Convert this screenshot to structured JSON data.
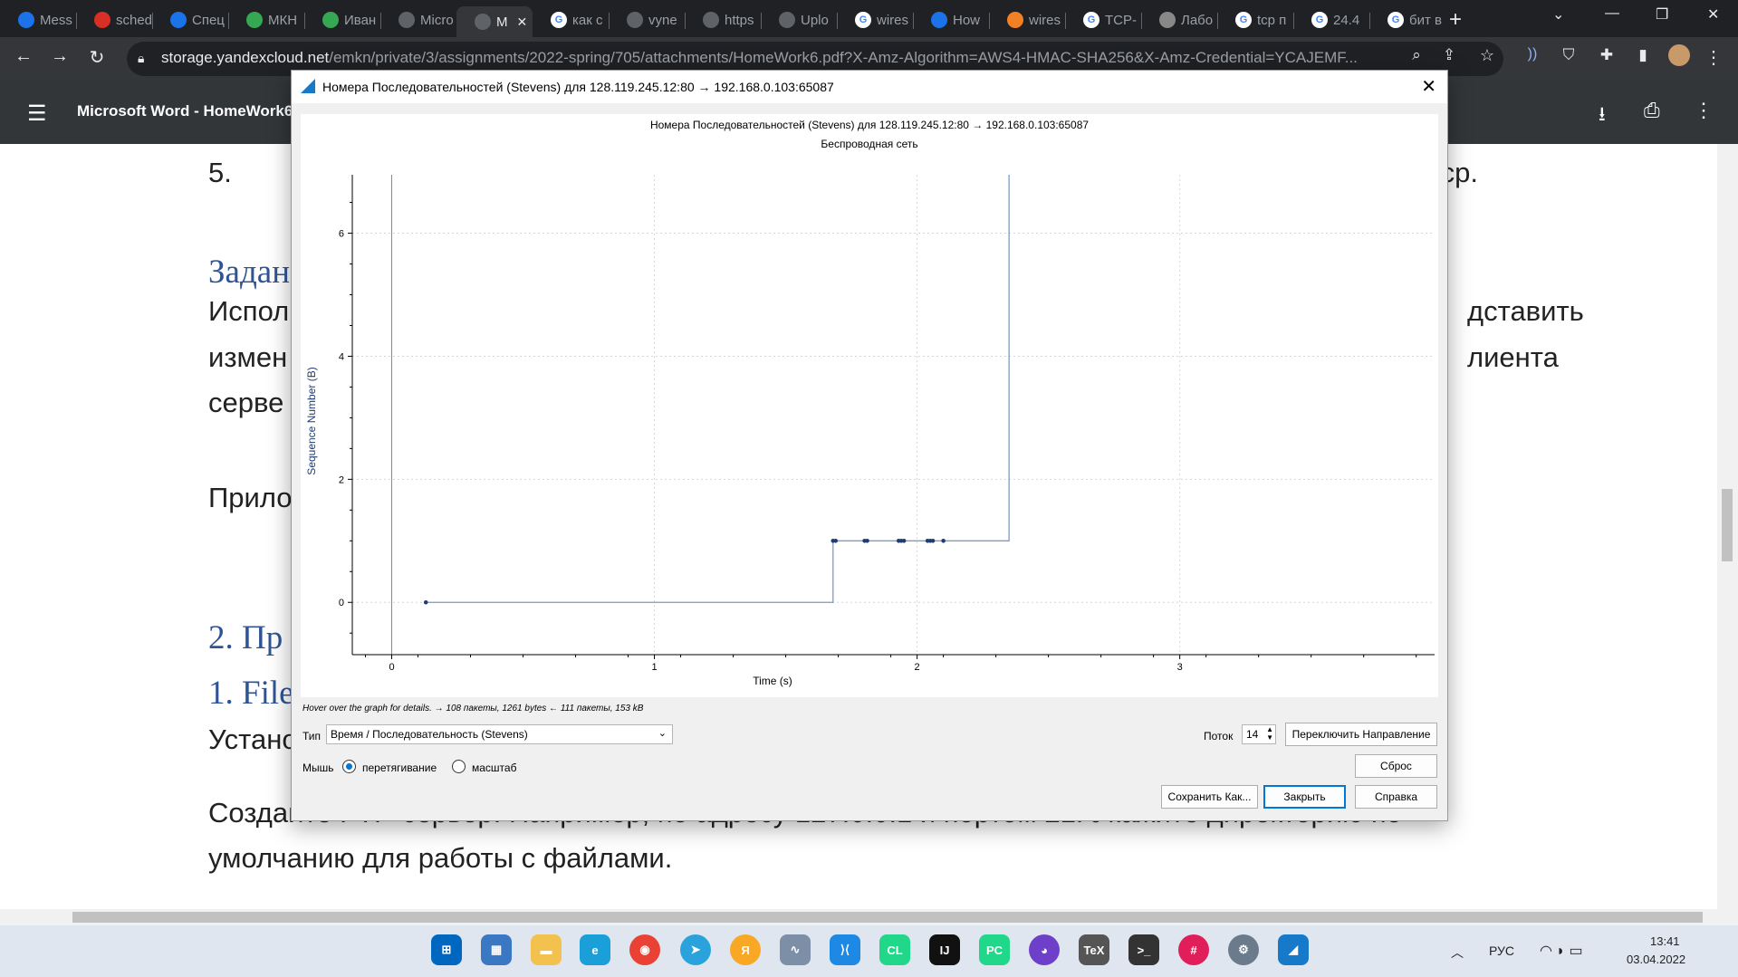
{
  "browser": {
    "tabs": [
      {
        "label": "Mess",
        "fav": "chat-icon",
        "color": "#1a73e8"
      },
      {
        "label": "sched",
        "fav": "alarm-icon",
        "color": "#d93025"
      },
      {
        "label": "Спец",
        "fav": "docs-icon",
        "color": "#1a73e8"
      },
      {
        "label": "МКН",
        "fav": "site-icon",
        "color": "#34a853"
      },
      {
        "label": "Иван",
        "fav": "site-icon",
        "color": "#34a853"
      },
      {
        "label": "Micro",
        "fav": "globe-icon",
        "color": "#5f6368"
      },
      {
        "label": "M",
        "fav": "globe-icon",
        "color": "#5f6368"
      },
      {
        "label": "как с",
        "fav": "google-icon",
        "color": "#ffffff"
      },
      {
        "label": "vyne",
        "fav": "globe-icon",
        "color": "#5f6368"
      },
      {
        "label": "https",
        "fav": "globe-icon",
        "color": "#5f6368"
      },
      {
        "label": "Uplo",
        "fav": "globe-icon",
        "color": "#5f6368"
      },
      {
        "label": "wires",
        "fav": "google-icon",
        "color": "#ffffff"
      },
      {
        "label": "How",
        "fav": "site-icon",
        "color": "#1a73e8"
      },
      {
        "label": "wires",
        "fav": "stack-icon",
        "color": "#f48024"
      },
      {
        "label": "TCP-",
        "fav": "google-icon",
        "color": "#ffffff"
      },
      {
        "label": "Лабо",
        "fav": "site-icon",
        "color": "#888888"
      },
      {
        "label": "tcp п",
        "fav": "google-icon",
        "color": "#ffffff"
      },
      {
        "label": "24.4",
        "fav": "google-icon",
        "color": "#ffffff"
      },
      {
        "label": "бит в",
        "fav": "google-icon",
        "color": "#ffffff"
      }
    ],
    "active_tab_index": 6,
    "url_host": "storage.yandexcloud.net",
    "url_path": "/emkn/private/3/assignments/2022-spring/705/attachments/HomeWork6.pdf?X-Amz-Algorithm=AWS4-HMAC-SHA256&X-Amz-Credential=YCAJEMF..."
  },
  "pdf": {
    "title": "Microsoft Word - HomeWork6",
    "lines": [
      {
        "text": "5.",
        "style": "normal"
      },
      {
        "text": "tcp.",
        "style": "normal"
      },
      {
        "text": "Задан",
        "style": "blue"
      },
      {
        "text": "Испол",
        "style": "normal"
      },
      {
        "text": "дставить",
        "style": "normal"
      },
      {
        "text": "измен",
        "style": "normal"
      },
      {
        "text": "лиента",
        "style": "normal"
      },
      {
        "text": "серве",
        "style": "normal"
      },
      {
        "text": "Прило",
        "style": "normal"
      },
      {
        "text": "2. Пр",
        "style": "blue"
      },
      {
        "text": "1. File",
        "style": "blue"
      },
      {
        "text": "Устано",
        "style": "normal"
      },
      {
        "text": "Создайте FTP-сервер. Например, по адресу 127.0.0.1 и портом 21. Укажите директорию по",
        "style": "normal"
      },
      {
        "text": "умолчанию для работы с файлами.",
        "style": "normal"
      }
    ]
  },
  "dialog": {
    "title": "Номера Последовательностей (Stevens) для 128.119.245.12:80 → 192.168.0.103:65087",
    "hover_text": "Hover over the graph for details. → 108 пакеты, 1261 bytes ← 111 пакеты, 153 kB",
    "type_label": "Тип",
    "type_value": "Время / Последовательность (Stevens)",
    "stream_label": "Поток",
    "stream_value": "14",
    "switch_direction": "Переключить Направление",
    "reset": "Сброс",
    "mouse_label": "Мышь",
    "drag_label": "перетягивание",
    "zoom_label": "масштаб",
    "mouse_mode": "drag",
    "save_as": "Сохранить Как...",
    "close": "Закрыть",
    "help": "Справка"
  },
  "chart_data": {
    "type": "scatter",
    "title": "Номера Последовательностей (Stevens) для 128.119.245.12:80 → 192.168.0.103:65087",
    "subtitle": "Беспроводная сеть",
    "xlabel": "Time (s)",
    "ylabel": "Sequence Number (B)",
    "xlim": [
      -0.15,
      3.97
    ],
    "ylim": [
      -0.85,
      6.95
    ],
    "xticks": [
      0,
      1,
      2,
      3
    ],
    "yticks": [
      0,
      2,
      4,
      6
    ],
    "grid": true,
    "series": [
      {
        "color": "#1f3d73",
        "x": [
          0.13,
          1.68,
          1.69,
          1.8,
          1.81,
          1.93,
          1.94,
          1.95,
          2.04,
          2.05,
          2.06,
          2.1
        ],
        "y": [
          0,
          1,
          1,
          1,
          1,
          1,
          1,
          1,
          1,
          1,
          1,
          1
        ]
      }
    ],
    "step_line": {
      "color": "#7f9ac4",
      "x": [
        0.13,
        1.68,
        1.68,
        2.35,
        2.35
      ],
      "y": [
        0,
        0,
        1,
        1,
        6.95
      ]
    },
    "vertical_line_x": 0
  }
}
